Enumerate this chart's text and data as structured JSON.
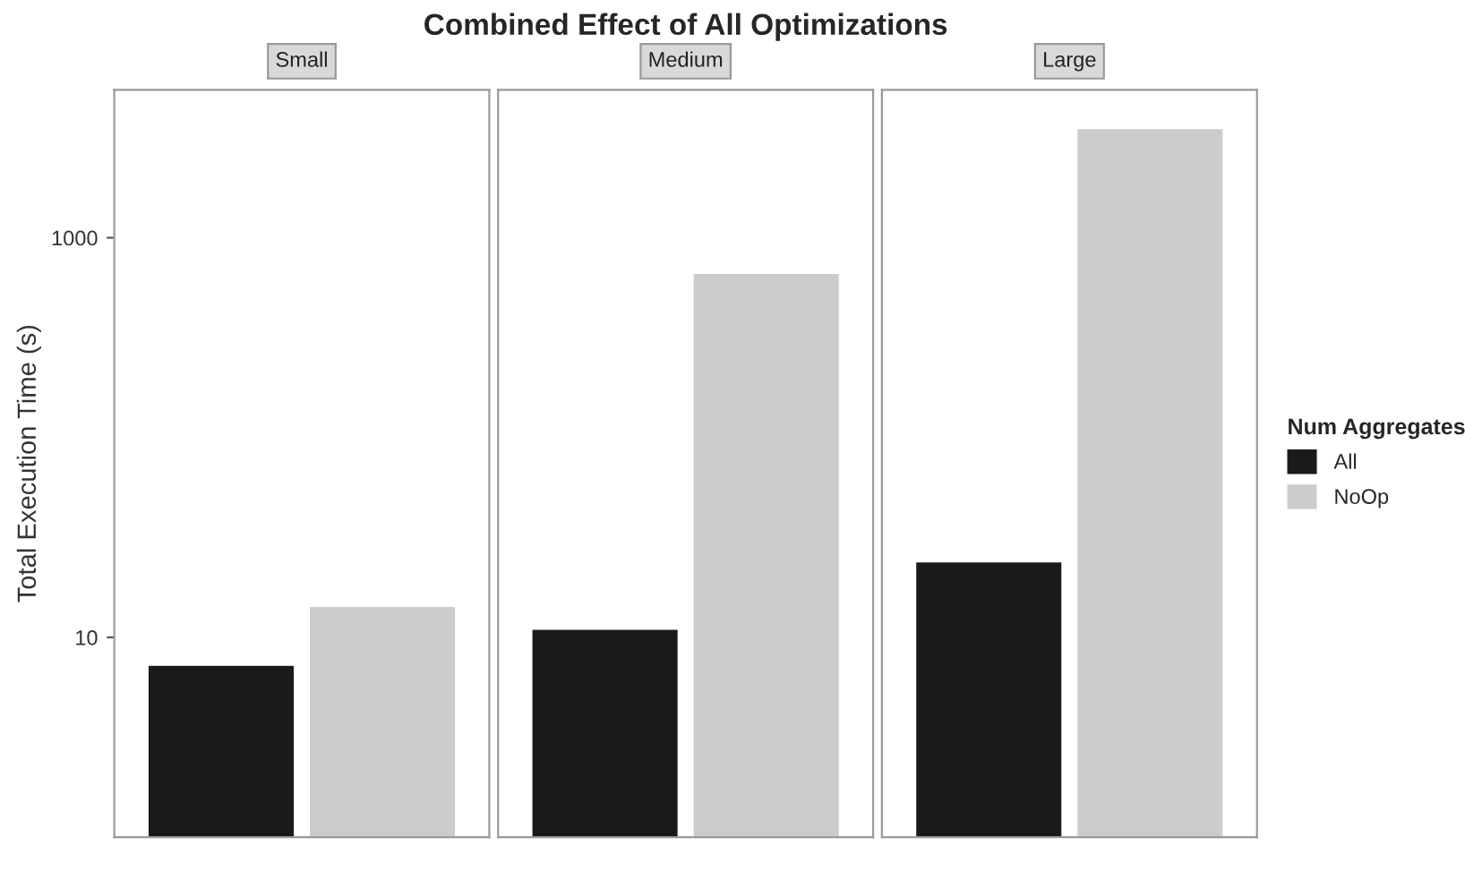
{
  "chart_data": {
    "type": "bar",
    "title": "Combined Effect of All Optimizations",
    "ylabel": "Total Execution Time (s)",
    "categories": [
      "Small",
      "Medium",
      "Large"
    ],
    "log": true,
    "ylim": [
      1,
      5500
    ],
    "yticks": [
      10,
      1000
    ],
    "legend": "right",
    "legend_title": "Num Aggregates",
    "series": [
      {
        "name": "All",
        "color": "#1a1a1a",
        "values": [
          7.2,
          10.9,
          23.7
        ]
      },
      {
        "name": "NoOp",
        "color": "#cccccc",
        "values": [
          14.2,
          659,
          3500
        ]
      }
    ]
  }
}
